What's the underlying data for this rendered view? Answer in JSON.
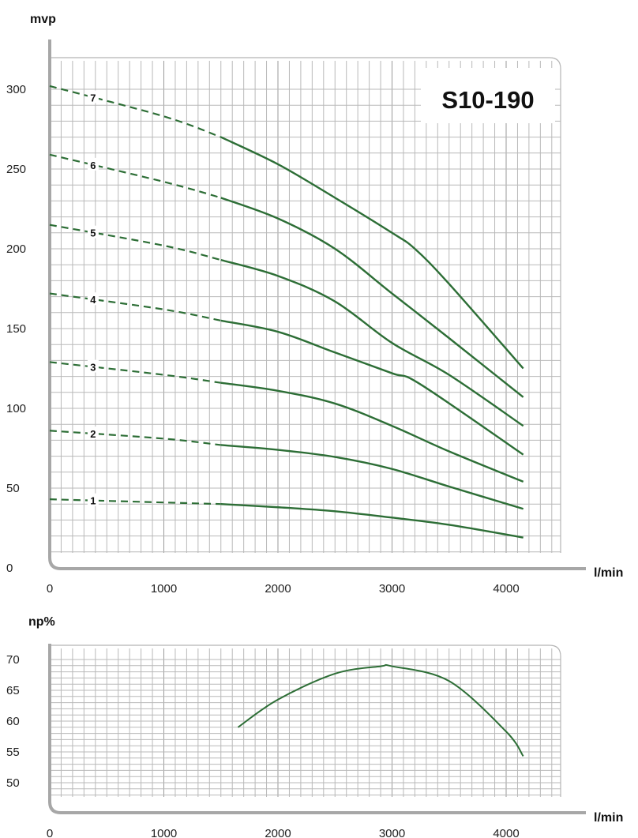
{
  "model_label": "S10-190",
  "chart_data": [
    {
      "type": "line",
      "title": "",
      "ylabel": "mvp",
      "xlabel": "l/min",
      "xlim": [
        0,
        4500
      ],
      "ylim": [
        0,
        310
      ],
      "x_ticks": [
        0,
        1000,
        2000,
        3000,
        4000
      ],
      "y_ticks": [
        0,
        50,
        100,
        150,
        200,
        250,
        300
      ],
      "grid": true,
      "dashed_below_x": 1500,
      "series": [
        {
          "name": "1",
          "x": [
            0,
            1000,
            1500,
            2000,
            2500,
            3000,
            3500,
            4150
          ],
          "y": [
            43,
            41,
            40,
            38,
            35.5,
            31.5,
            27,
            19
          ]
        },
        {
          "name": "2",
          "x": [
            0,
            1000,
            1500,
            2000,
            2500,
            3000,
            3500,
            4150
          ],
          "y": [
            86,
            81,
            77,
            74,
            69.5,
            62,
            51,
            37
          ]
        },
        {
          "name": "3",
          "x": [
            0,
            1000,
            1500,
            2000,
            2500,
            3000,
            3500,
            4150
          ],
          "y": [
            129,
            121,
            116,
            111,
            103,
            89,
            73,
            54
          ]
        },
        {
          "name": "4",
          "x": [
            0,
            1000,
            1500,
            2000,
            2500,
            3000,
            3250,
            4150
          ],
          "y": [
            172,
            162,
            155,
            148,
            135,
            122,
            115,
            71
          ]
        },
        {
          "name": "5",
          "x": [
            0,
            1000,
            1500,
            2000,
            2500,
            3000,
            3500,
            4150
          ],
          "y": [
            215,
            202,
            193,
            183,
            167,
            141,
            121,
            89
          ]
        },
        {
          "name": "6",
          "x": [
            0,
            1000,
            1500,
            2000,
            2500,
            3000,
            3500,
            4150
          ],
          "y": [
            259,
            242,
            232,
            219,
            200,
            172,
            144,
            107
          ]
        },
        {
          "name": "7",
          "x": [
            0,
            1000,
            1500,
            2000,
            2500,
            3000,
            3200,
            3500,
            4150
          ],
          "y": [
            302,
            283,
            270,
            253,
            232,
            210,
            200,
            178,
            125
          ]
        }
      ],
      "curve_label_x": 380
    },
    {
      "type": "line",
      "title": "",
      "ylabel": "np%",
      "xlabel": "l/min",
      "xlim": [
        0,
        4500
      ],
      "ylim": [
        45,
        71
      ],
      "x_ticks": [
        0,
        1000,
        2000,
        3000,
        4000
      ],
      "y_ticks": [
        50,
        55,
        60,
        65,
        70
      ],
      "grid": true,
      "series": [
        {
          "x": [
            1650,
            2000,
            2500,
            2900,
            3000,
            3500,
            4000,
            4150
          ],
          "y": [
            59,
            63.5,
            67.7,
            68.9,
            68.9,
            66.5,
            58.3,
            54.3
          ]
        }
      ]
    }
  ]
}
